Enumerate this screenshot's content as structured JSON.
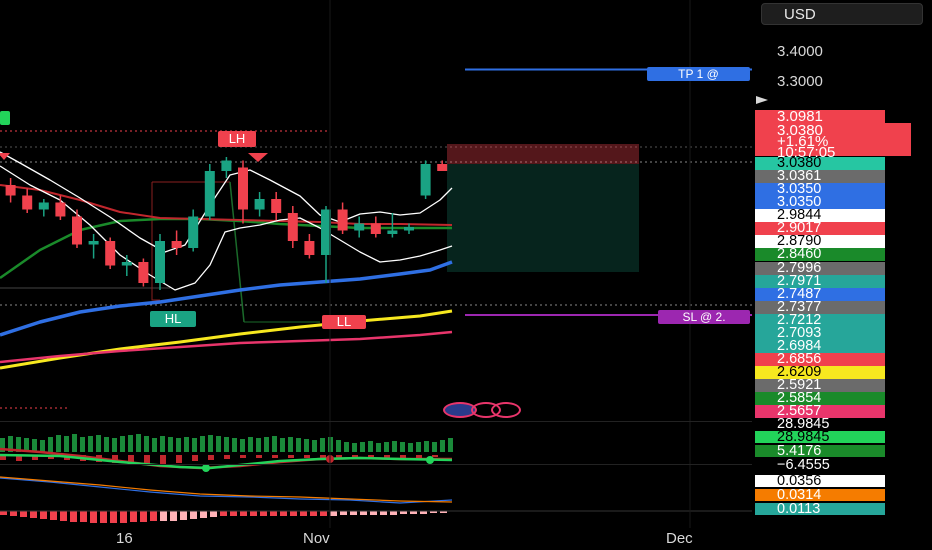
{
  "currency": "USD",
  "price_axis": {
    "ticks": [
      "3.4000",
      "3.3000"
    ]
  },
  "price_box": {
    "top": "3.0981",
    "price": "3.0380",
    "change": "+1.61%",
    "countdown": "10:57:05"
  },
  "trade_labels": {
    "tp": "TP 1 @",
    "sl": "SL @ 2."
  },
  "swing_tags": {
    "lh": "LH",
    "hl": "HL",
    "ll": "LL"
  },
  "level_labels": [
    {
      "text": "3.0380",
      "bg": "#26c6a2",
      "dark": true
    },
    {
      "text": "3.0361",
      "bg": "#6b6b6b",
      "dark": false
    },
    {
      "text": "3.0350",
      "bg": "#2f6fe3",
      "dark": false
    },
    {
      "text": "3.0350",
      "bg": "#2f6fe3",
      "dark": false
    },
    {
      "text": "2.9844",
      "bg": "#ffffff",
      "dark": true
    },
    {
      "text": "2.9017",
      "bg": "#f0414d",
      "dark": false
    },
    {
      "text": "2.8790",
      "bg": "#ffffff",
      "dark": true
    },
    {
      "text": "2.8460",
      "bg": "#1a8a2a",
      "dark": false
    },
    {
      "text": "2.7996",
      "bg": "#6b6b6b",
      "dark": false
    },
    {
      "text": "2.7971",
      "bg": "#26a69a",
      "dark": false
    },
    {
      "text": "2.7487",
      "bg": "#2f6fe3",
      "dark": false
    },
    {
      "text": "2.7377",
      "bg": "#6b6b6b",
      "dark": false
    },
    {
      "text": "2.7212",
      "bg": "#26a69a",
      "dark": false
    },
    {
      "text": "2.7093",
      "bg": "#26a69a",
      "dark": false
    },
    {
      "text": "2.6984",
      "bg": "#26a69a",
      "dark": false
    },
    {
      "text": "2.6856",
      "bg": "#f0414d",
      "dark": false
    },
    {
      "text": "2.6209",
      "bg": "#f7e81f",
      "dark": true
    },
    {
      "text": "2.5921",
      "bg": "#6b6b6b",
      "dark": false
    },
    {
      "text": "2.5854",
      "bg": "#1a8a2a",
      "dark": false
    },
    {
      "text": "2.5657",
      "bg": "#e8356b",
      "dark": false
    }
  ],
  "indicator_labels": [
    {
      "text": "28.9845",
      "bg": "transparent",
      "color": "#ffffff"
    },
    {
      "text": "28.9845",
      "bg": "#22d35a",
      "color": "#000000"
    },
    {
      "text": "5.4176",
      "bg": "#1a8a2a",
      "color": "#ffffff"
    },
    {
      "text": "−6.4555",
      "bg": "transparent",
      "color": "#ffffff"
    },
    {
      "text": "0.0356",
      "bg": "#ffffff",
      "color": "#000000"
    },
    {
      "text": "0.0314",
      "bg": "#f57c00",
      "color": "#ffffff"
    },
    {
      "text": "0.0113",
      "bg": "#26a69a",
      "color": "#ffffff"
    }
  ],
  "time_axis": [
    "16",
    "Nov",
    "Dec"
  ],
  "colors": {
    "up": "#1aa383",
    "down": "#f0414d",
    "ema_blue": "#2f6fe3",
    "ema_yellow": "#f7e81f",
    "ema_pink": "#e8356b",
    "ema_green": "#1a8a2a",
    "tp_line": "#2f6fe3",
    "sl_line": "#9c27b0"
  },
  "chart_data": {
    "type": "candlestick",
    "currency": "USD",
    "candles": [
      {
        "o": 3.06,
        "h": 3.09,
        "l": 2.99,
        "c": 3.0
      },
      {
        "o": 3.0,
        "h": 3.02,
        "l": 2.95,
        "c": 2.97
      },
      {
        "o": 2.97,
        "h": 2.99,
        "l": 2.92,
        "c": 2.93
      },
      {
        "o": 2.93,
        "h": 2.96,
        "l": 2.91,
        "c": 2.95
      },
      {
        "o": 2.95,
        "h": 2.97,
        "l": 2.9,
        "c": 2.91
      },
      {
        "o": 2.91,
        "h": 2.93,
        "l": 2.82,
        "c": 2.83
      },
      {
        "o": 2.83,
        "h": 2.86,
        "l": 2.79,
        "c": 2.84
      },
      {
        "o": 2.84,
        "h": 2.85,
        "l": 2.76,
        "c": 2.77
      },
      {
        "o": 2.77,
        "h": 2.8,
        "l": 2.74,
        "c": 2.78
      },
      {
        "o": 2.78,
        "h": 2.79,
        "l": 2.71,
        "c": 2.72
      },
      {
        "o": 2.72,
        "h": 2.86,
        "l": 2.7,
        "c": 2.84
      },
      {
        "o": 2.84,
        "h": 2.87,
        "l": 2.8,
        "c": 2.82
      },
      {
        "o": 2.82,
        "h": 2.93,
        "l": 2.81,
        "c": 2.91
      },
      {
        "o": 2.91,
        "h": 3.06,
        "l": 2.9,
        "c": 3.04
      },
      {
        "o": 3.04,
        "h": 3.08,
        "l": 3.02,
        "c": 3.07
      },
      {
        "o": 3.05,
        "h": 3.07,
        "l": 2.89,
        "c": 2.93
      },
      {
        "o": 2.93,
        "h": 2.98,
        "l": 2.91,
        "c": 2.96
      },
      {
        "o": 2.96,
        "h": 2.98,
        "l": 2.9,
        "c": 2.92
      },
      {
        "o": 2.92,
        "h": 2.94,
        "l": 2.82,
        "c": 2.84
      },
      {
        "o": 2.84,
        "h": 2.86,
        "l": 2.79,
        "c": 2.8
      },
      {
        "o": 2.8,
        "h": 2.94,
        "l": 2.72,
        "c": 2.93
      },
      {
        "o": 2.93,
        "h": 2.95,
        "l": 2.86,
        "c": 2.87
      },
      {
        "o": 2.87,
        "h": 2.91,
        "l": 2.85,
        "c": 2.89
      },
      {
        "o": 2.89,
        "h": 2.91,
        "l": 2.85,
        "c": 2.86
      },
      {
        "o": 2.86,
        "h": 2.92,
        "l": 2.85,
        "c": 2.87
      },
      {
        "o": 2.87,
        "h": 2.89,
        "l": 2.86,
        "c": 2.88
      },
      {
        "o": 2.97,
        "h": 3.07,
        "l": 2.96,
        "c": 3.06
      },
      {
        "o": 3.06,
        "h": 3.07,
        "l": 3.04,
        "c": 3.04
      }
    ],
    "tp_level": 3.33,
    "sl_level": 2.725
  }
}
